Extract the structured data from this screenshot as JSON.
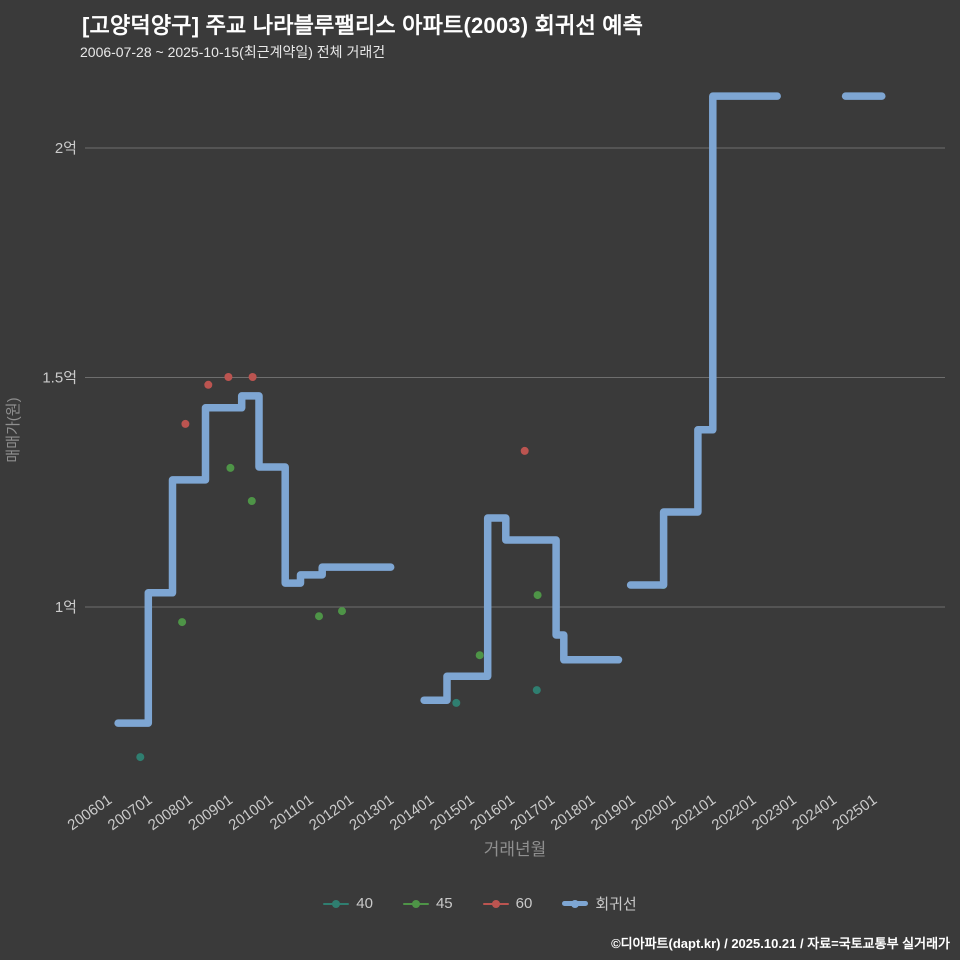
{
  "header": {
    "title": "[고양덕양구] 주교 나라블루팰리스 아파트(2003) 회귀선 예측",
    "subtitle": "2006-07-28 ~ 2025-10-15(최근계약일) 전체 거래건"
  },
  "footer": {
    "credit": "©디아파트(dapt.kr) / 2025.10.21 / 자료=국토교통부 실거래가"
  },
  "legend": {
    "items": [
      {
        "label": "40",
        "color": "#2f7e70",
        "type": "scatter"
      },
      {
        "label": "45",
        "color": "#4e9447",
        "type": "scatter"
      },
      {
        "label": "60",
        "color": "#bb5450",
        "type": "scatter"
      },
      {
        "label": "회귀선",
        "color": "#7ea6d3",
        "type": "line"
      }
    ]
  },
  "chart_data": {
    "type": "line",
    "title": "[고양덕양구] 주교 나라블루팰리스 아파트(2003) 회귀선 예측",
    "xlabel": "거래년월",
    "ylabel": "매매가(원)",
    "unit": "억원",
    "grid": true,
    "legend_position": "bottom",
    "x_ticks": [
      "200601",
      "200701",
      "200801",
      "200901",
      "201001",
      "201101",
      "201201",
      "201301",
      "201401",
      "201501",
      "201601",
      "201701",
      "201801",
      "201901",
      "202001",
      "202101",
      "202201",
      "202301",
      "202401",
      "202501"
    ],
    "y_ticks": [
      {
        "value": 1,
        "label": "1억"
      },
      {
        "value": 1.5,
        "label": "1.5억"
      },
      {
        "value": 2,
        "label": "2억"
      }
    ],
    "ylim": [
      0.6,
      2.15
    ],
    "regression": {
      "name": "회귀선",
      "color": "#7ea6d3",
      "segments": [
        [
          [
            2006.45,
            0.747
          ],
          [
            2007.2,
            0.747
          ],
          [
            2007.2,
            1.031
          ],
          [
            2007.8,
            1.031
          ],
          [
            2007.8,
            1.277
          ],
          [
            2008.62,
            1.277
          ],
          [
            2008.62,
            1.434
          ],
          [
            2009.52,
            1.434
          ],
          [
            2009.52,
            1.46
          ],
          [
            2009.95,
            1.46
          ],
          [
            2009.95,
            1.305
          ],
          [
            2010.6,
            1.305
          ],
          [
            2010.6,
            1.052
          ],
          [
            2010.98,
            1.052
          ],
          [
            2010.98,
            1.07
          ],
          [
            2011.52,
            1.07
          ],
          [
            2011.52,
            1.087
          ],
          [
            2013.22,
            1.087
          ]
        ],
        [
          [
            2014.05,
            0.797
          ],
          [
            2014.62,
            0.797
          ],
          [
            2014.62,
            0.849
          ],
          [
            2015.63,
            0.849
          ],
          [
            2015.63,
            1.194
          ],
          [
            2016.08,
            1.194
          ],
          [
            2016.08,
            1.146
          ],
          [
            2017.33,
            1.146
          ],
          [
            2017.33,
            0.939
          ],
          [
            2017.52,
            0.939
          ],
          [
            2017.52,
            0.885
          ],
          [
            2018.88,
            0.885
          ]
        ],
        [
          [
            2019.18,
            1.048
          ],
          [
            2020.0,
            1.048
          ],
          [
            2020.0,
            1.207
          ],
          [
            2020.85,
            1.207
          ],
          [
            2020.85,
            1.386
          ],
          [
            2021.22,
            1.386
          ],
          [
            2021.22,
            2.113
          ],
          [
            2022.82,
            2.113
          ]
        ],
        [
          [
            2024.52,
            2.113
          ],
          [
            2025.42,
            2.113
          ]
        ]
      ]
    },
    "scatter_series": [
      {
        "name": "40",
        "color": "#2f7e70",
        "points": [
          [
            2007.0,
            0.673
          ],
          [
            2014.85,
            0.791
          ],
          [
            2016.85,
            0.819
          ]
        ]
      },
      {
        "name": "45",
        "color": "#4e9447",
        "points": [
          [
            2008.04,
            0.967
          ],
          [
            2009.24,
            1.303
          ],
          [
            2009.77,
            1.231
          ],
          [
            2011.44,
            0.98
          ],
          [
            2012.01,
            0.991
          ],
          [
            2015.43,
            0.895
          ],
          [
            2016.87,
            1.026
          ],
          [
            2019.99,
            1.048
          ]
        ]
      },
      {
        "name": "60",
        "color": "#bb5450",
        "points": [
          [
            2008.12,
            1.399
          ],
          [
            2008.69,
            1.484
          ],
          [
            2009.19,
            1.501
          ],
          [
            2009.79,
            1.501
          ],
          [
            2016.55,
            1.34
          ]
        ]
      }
    ]
  }
}
